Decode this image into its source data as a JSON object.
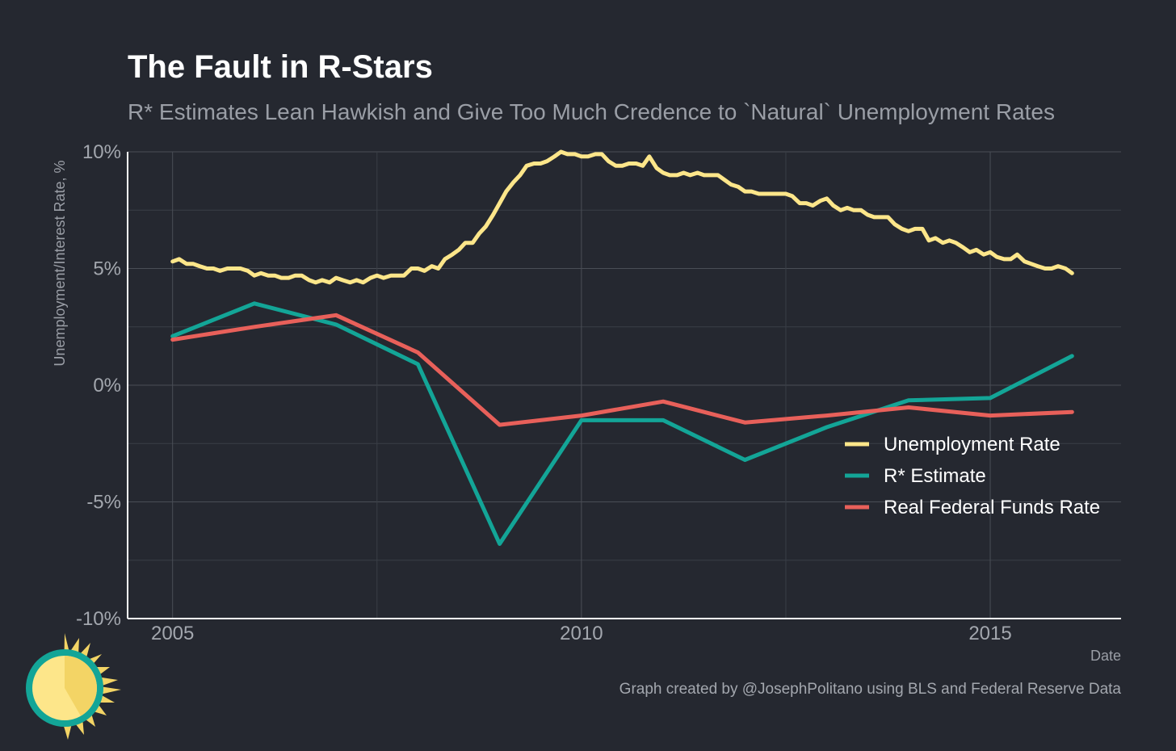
{
  "colors": {
    "background": "#252830",
    "unemployment": "#fde68a",
    "rstar": "#13a597",
    "fedfunds": "#e8605a"
  },
  "logo": {
    "icon": "sun-clock-icon"
  },
  "caption": "Graph created by @JosephPolitano using BLS and Federal Reserve Data",
  "chart_data": {
    "type": "line",
    "title": "The Fault in R-Stars",
    "subtitle": "R* Estimates Lean Hawkish and Give Too Much Credence to `Natural` Unemployment Rates",
    "xlabel": "Date",
    "ylabel": "Unemployment/Interest Rate, %",
    "xlim": [
      2004.45,
      2016.6
    ],
    "ylim": [
      -10,
      10
    ],
    "x_ticks": [
      {
        "value": 2005,
        "label": "2005"
      },
      {
        "value": 2010,
        "label": "2010"
      },
      {
        "value": 2015,
        "label": "2015"
      }
    ],
    "y_ticks": [
      {
        "value": 10,
        "label": "10%"
      },
      {
        "value": 5,
        "label": "5%"
      },
      {
        "value": 0,
        "label": "0%"
      },
      {
        "value": -5,
        "label": "-5%"
      },
      {
        "value": -10,
        "label": "-10%"
      }
    ],
    "grid": true,
    "legend_position": "bottom-right",
    "series": [
      {
        "name": "Unemployment Rate",
        "color": "#fde68a",
        "points": [
          [
            2005.0,
            5.3
          ],
          [
            2005.08,
            5.4
          ],
          [
            2005.17,
            5.2
          ],
          [
            2005.25,
            5.2
          ],
          [
            2005.33,
            5.1
          ],
          [
            2005.42,
            5.0
          ],
          [
            2005.5,
            5.0
          ],
          [
            2005.58,
            4.9
          ],
          [
            2005.67,
            5.0
          ],
          [
            2005.75,
            5.0
          ],
          [
            2005.83,
            5.0
          ],
          [
            2005.92,
            4.9
          ],
          [
            2006.0,
            4.7
          ],
          [
            2006.08,
            4.8
          ],
          [
            2006.17,
            4.7
          ],
          [
            2006.25,
            4.7
          ],
          [
            2006.33,
            4.6
          ],
          [
            2006.42,
            4.6
          ],
          [
            2006.5,
            4.7
          ],
          [
            2006.58,
            4.7
          ],
          [
            2006.67,
            4.5
          ],
          [
            2006.75,
            4.4
          ],
          [
            2006.83,
            4.5
          ],
          [
            2006.92,
            4.4
          ],
          [
            2007.0,
            4.6
          ],
          [
            2007.08,
            4.5
          ],
          [
            2007.17,
            4.4
          ],
          [
            2007.25,
            4.5
          ],
          [
            2007.33,
            4.4
          ],
          [
            2007.42,
            4.6
          ],
          [
            2007.5,
            4.7
          ],
          [
            2007.58,
            4.6
          ],
          [
            2007.67,
            4.7
          ],
          [
            2007.75,
            4.7
          ],
          [
            2007.83,
            4.7
          ],
          [
            2007.92,
            5.0
          ],
          [
            2008.0,
            5.0
          ],
          [
            2008.08,
            4.9
          ],
          [
            2008.17,
            5.1
          ],
          [
            2008.25,
            5.0
          ],
          [
            2008.33,
            5.4
          ],
          [
            2008.42,
            5.6
          ],
          [
            2008.5,
            5.8
          ],
          [
            2008.58,
            6.1
          ],
          [
            2008.67,
            6.1
          ],
          [
            2008.75,
            6.5
          ],
          [
            2008.83,
            6.8
          ],
          [
            2008.92,
            7.3
          ],
          [
            2009.0,
            7.8
          ],
          [
            2009.08,
            8.3
          ],
          [
            2009.17,
            8.7
          ],
          [
            2009.25,
            9.0
          ],
          [
            2009.33,
            9.4
          ],
          [
            2009.42,
            9.5
          ],
          [
            2009.5,
            9.5
          ],
          [
            2009.58,
            9.6
          ],
          [
            2009.67,
            9.8
          ],
          [
            2009.75,
            10.0
          ],
          [
            2009.83,
            9.9
          ],
          [
            2009.92,
            9.9
          ],
          [
            2010.0,
            9.8
          ],
          [
            2010.08,
            9.8
          ],
          [
            2010.17,
            9.9
          ],
          [
            2010.25,
            9.9
          ],
          [
            2010.33,
            9.6
          ],
          [
            2010.42,
            9.4
          ],
          [
            2010.5,
            9.4
          ],
          [
            2010.58,
            9.5
          ],
          [
            2010.67,
            9.5
          ],
          [
            2010.75,
            9.4
          ],
          [
            2010.83,
            9.8
          ],
          [
            2010.92,
            9.3
          ],
          [
            2011.0,
            9.1
          ],
          [
            2011.08,
            9.0
          ],
          [
            2011.17,
            9.0
          ],
          [
            2011.25,
            9.1
          ],
          [
            2011.33,
            9.0
          ],
          [
            2011.42,
            9.1
          ],
          [
            2011.5,
            9.0
          ],
          [
            2011.58,
            9.0
          ],
          [
            2011.67,
            9.0
          ],
          [
            2011.75,
            8.8
          ],
          [
            2011.83,
            8.6
          ],
          [
            2011.92,
            8.5
          ],
          [
            2012.0,
            8.3
          ],
          [
            2012.08,
            8.3
          ],
          [
            2012.17,
            8.2
          ],
          [
            2012.25,
            8.2
          ],
          [
            2012.33,
            8.2
          ],
          [
            2012.42,
            8.2
          ],
          [
            2012.5,
            8.2
          ],
          [
            2012.58,
            8.1
          ],
          [
            2012.67,
            7.8
          ],
          [
            2012.75,
            7.8
          ],
          [
            2012.83,
            7.7
          ],
          [
            2012.92,
            7.9
          ],
          [
            2013.0,
            8.0
          ],
          [
            2013.08,
            7.7
          ],
          [
            2013.17,
            7.5
          ],
          [
            2013.25,
            7.6
          ],
          [
            2013.33,
            7.5
          ],
          [
            2013.42,
            7.5
          ],
          [
            2013.5,
            7.3
          ],
          [
            2013.58,
            7.2
          ],
          [
            2013.67,
            7.2
          ],
          [
            2013.75,
            7.2
          ],
          [
            2013.83,
            6.9
          ],
          [
            2013.92,
            6.7
          ],
          [
            2014.0,
            6.6
          ],
          [
            2014.08,
            6.7
          ],
          [
            2014.17,
            6.7
          ],
          [
            2014.25,
            6.2
          ],
          [
            2014.33,
            6.3
          ],
          [
            2014.42,
            6.1
          ],
          [
            2014.5,
            6.2
          ],
          [
            2014.58,
            6.1
          ],
          [
            2014.67,
            5.9
          ],
          [
            2014.75,
            5.7
          ],
          [
            2014.83,
            5.8
          ],
          [
            2014.92,
            5.6
          ],
          [
            2015.0,
            5.7
          ],
          [
            2015.08,
            5.5
          ],
          [
            2015.17,
            5.4
          ],
          [
            2015.25,
            5.4
          ],
          [
            2015.33,
            5.6
          ],
          [
            2015.42,
            5.3
          ],
          [
            2015.5,
            5.2
          ],
          [
            2015.58,
            5.1
          ],
          [
            2015.67,
            5.0
          ],
          [
            2015.75,
            5.0
          ],
          [
            2015.83,
            5.1
          ],
          [
            2015.92,
            5.0
          ],
          [
            2016.0,
            4.8
          ]
        ]
      },
      {
        "name": "R* Estimate",
        "color": "#13a597",
        "points": [
          [
            2005,
            2.1
          ],
          [
            2006,
            3.5
          ],
          [
            2007,
            2.6
          ],
          [
            2008,
            0.9
          ],
          [
            2009,
            -6.8
          ],
          [
            2010,
            -1.5
          ],
          [
            2011,
            -1.5
          ],
          [
            2012,
            -3.2
          ],
          [
            2013,
            -1.8
          ],
          [
            2014,
            -0.65
          ],
          [
            2015,
            -0.55
          ],
          [
            2016,
            1.25
          ]
        ]
      },
      {
        "name": "Real Federal Funds Rate",
        "color": "#e8605a",
        "points": [
          [
            2005,
            1.95
          ],
          [
            2006,
            2.5
          ],
          [
            2007,
            3.0
          ],
          [
            2008,
            1.4
          ],
          [
            2009,
            -1.7
          ],
          [
            2010,
            -1.3
          ],
          [
            2011,
            -0.7
          ],
          [
            2012,
            -1.6
          ],
          [
            2013,
            -1.3
          ],
          [
            2014,
            -0.95
          ],
          [
            2015,
            -1.3
          ],
          [
            2016,
            -1.15
          ]
        ]
      }
    ]
  }
}
